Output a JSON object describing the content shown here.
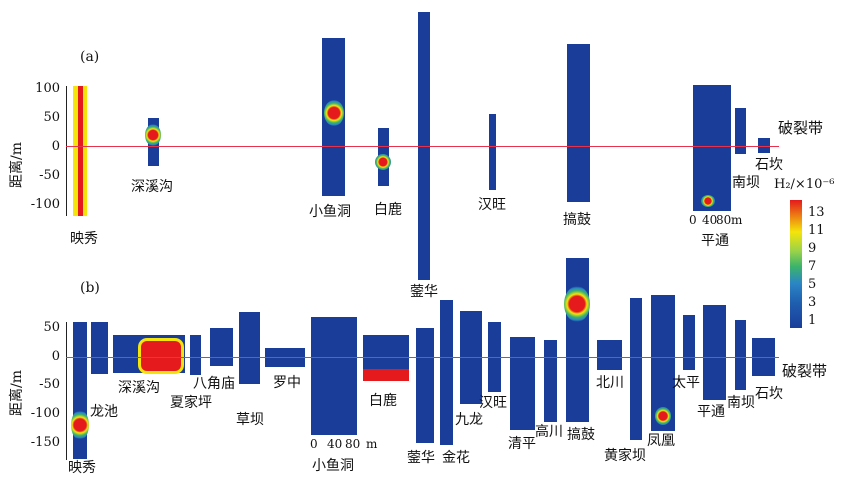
{
  "panel_a": {
    "tag": "(a)",
    "y_label": "距离/m",
    "y_ticks": [
      "100",
      "50",
      "0",
      "-50",
      "-100"
    ],
    "fault_label": "破裂带",
    "sites": [
      "映秀",
      "深溪沟",
      "小鱼洞",
      "白鹿",
      "汉旺",
      "蓥华",
      "搞鼓",
      "南坝",
      "石坎",
      "平通"
    ],
    "scale": {
      "ticks": [
        "0",
        "40",
        "80"
      ],
      "unit": "m"
    }
  },
  "panel_b": {
    "tag": "(b)",
    "y_label": "距离/m",
    "y_ticks": [
      "50",
      "0",
      "-50",
      "-100",
      "-150"
    ],
    "fault_label": "破裂带",
    "sites": [
      "映秀",
      "龙池",
      "深溪沟",
      "夏家坪",
      "八角庙",
      "草坝",
      "罗中",
      "小鱼洞",
      "白鹿",
      "蓥华",
      "金花",
      "九龙",
      "汉旺",
      "清平",
      "高川",
      "搞鼓",
      "北川",
      "黄家坝",
      "凤凰",
      "太平",
      "平通",
      "南坝",
      "石坎"
    ],
    "scale": {
      "ticks": [
        "0",
        "40",
        "80"
      ],
      "unit": "m"
    }
  },
  "legend": {
    "title": "H₂/×10⁻⁶",
    "ticks": [
      "13",
      "11",
      "9",
      "7",
      "5",
      "3",
      "1"
    ],
    "colors": [
      "#e41a1c",
      "#f5e50a",
      "#9ad24a",
      "#3bb36a",
      "#2b86c5",
      "#1f5fb0",
      "#1a3d9a"
    ]
  },
  "colors": {
    "base": "#1a3d9a",
    "fault_line": "#e8314a"
  }
}
